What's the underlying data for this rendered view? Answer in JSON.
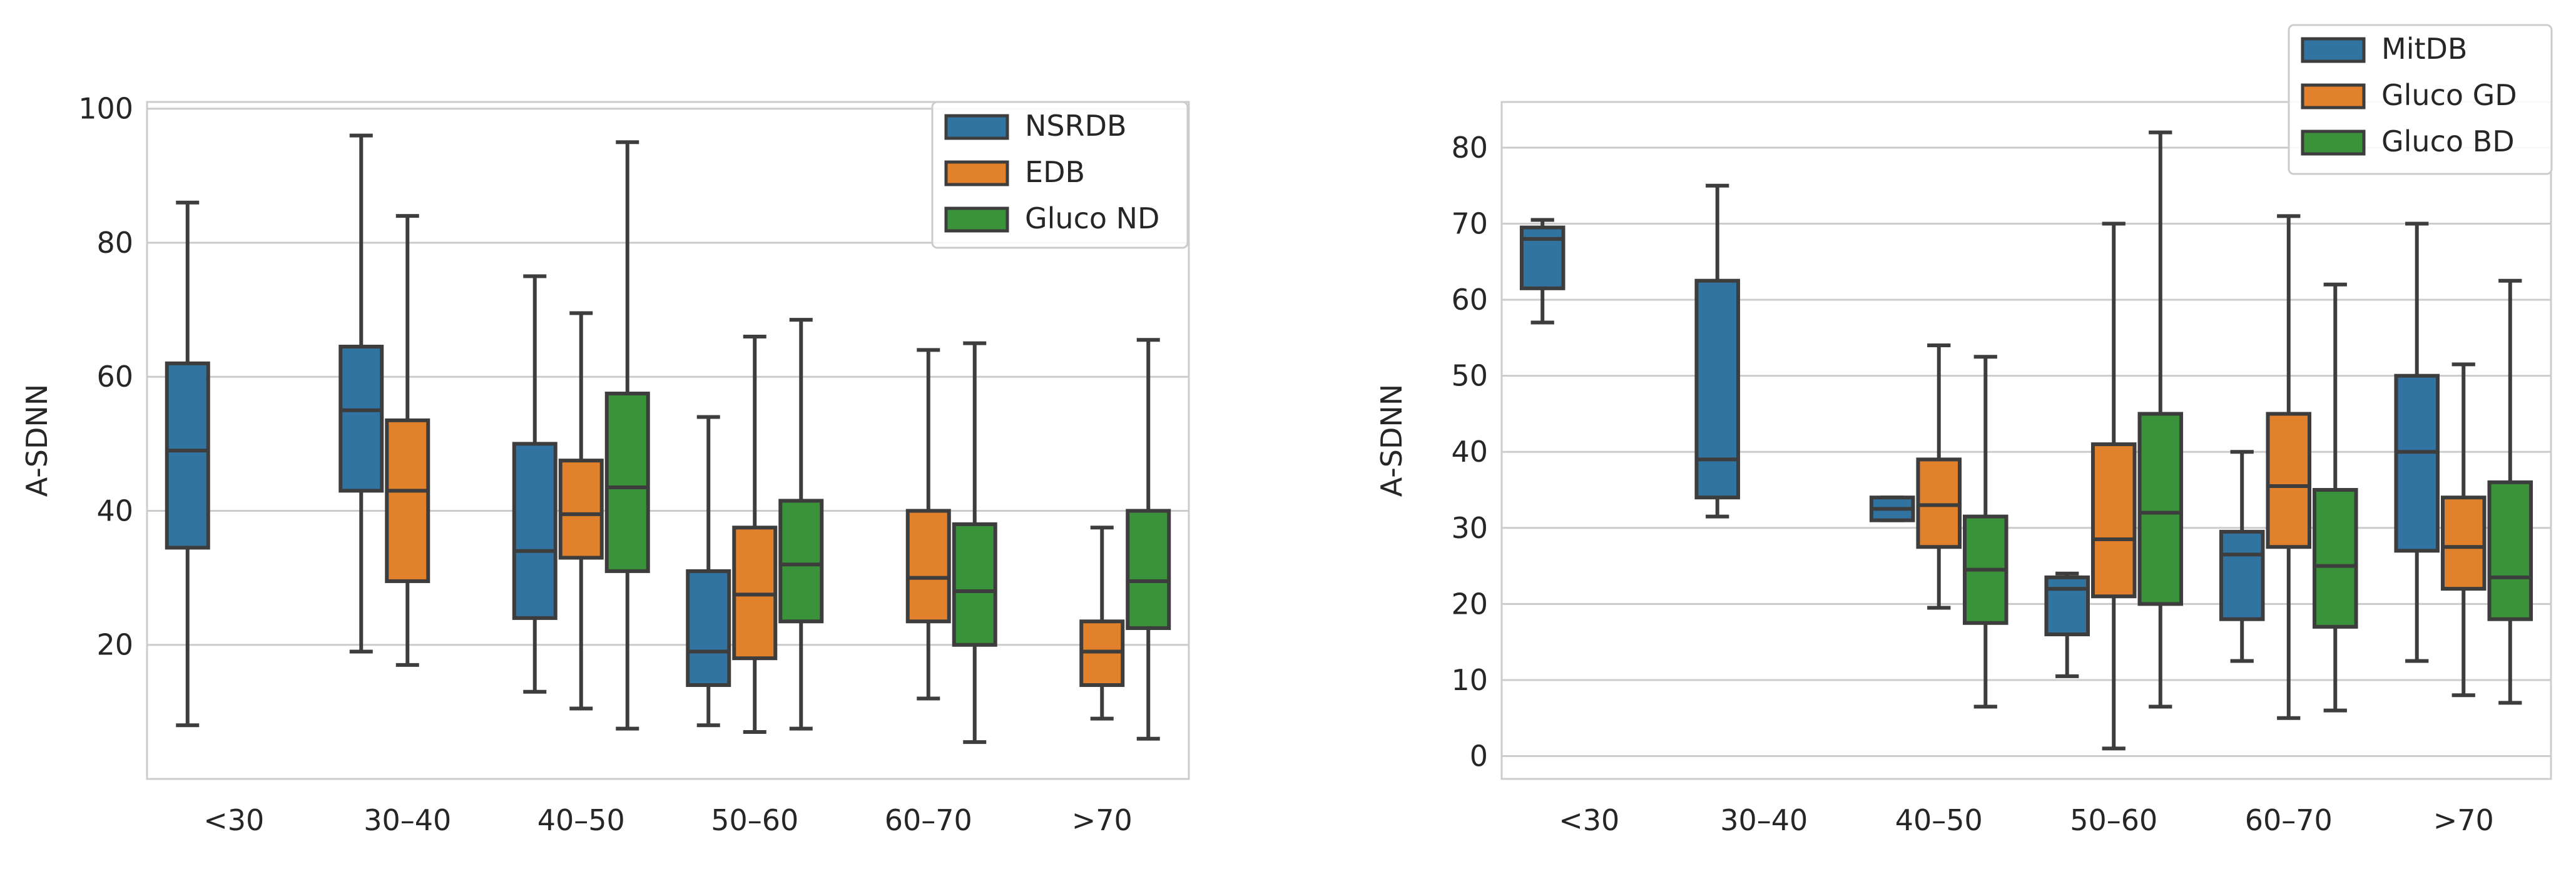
{
  "colors": {
    "blue": "#3274a1",
    "orange": "#e1812c",
    "green": "#3a923a",
    "grid": "#cccccc",
    "frame": "#cccccc",
    "line": "#3d3d3d"
  },
  "chart_data": [
    {
      "type": "box",
      "title": "",
      "xlabel": "",
      "ylabel": "A-SDNN",
      "categories": [
        "<30",
        "30–40",
        "40–50",
        "50–60",
        "60–70",
        ">70"
      ],
      "yticks": [
        20,
        40,
        60,
        80,
        100
      ],
      "ylim": [
        0,
        101
      ],
      "legend": {
        "position": "top-right"
      },
      "series": [
        {
          "name": "NSRDB",
          "color": "#3274a1",
          "boxes": [
            {
              "min": 8,
              "q1": 34.5,
              "median": 49,
              "q3": 62,
              "max": 86
            },
            {
              "min": 19,
              "q1": 43,
              "median": 55,
              "q3": 64.5,
              "max": 96
            },
            {
              "min": 13,
              "q1": 24,
              "median": 34,
              "q3": 50,
              "max": 75
            },
            {
              "min": 8,
              "q1": 14,
              "median": 19,
              "q3": 31,
              "max": 54
            },
            null,
            null
          ]
        },
        {
          "name": "EDB",
          "color": "#e1812c",
          "boxes": [
            null,
            {
              "min": 17,
              "q1": 29.5,
              "median": 43,
              "q3": 53.5,
              "max": 84
            },
            {
              "min": 10.5,
              "q1": 33,
              "median": 39.5,
              "q3": 47.5,
              "max": 69.5
            },
            {
              "min": 7,
              "q1": 18,
              "median": 27.5,
              "q3": 37.5,
              "max": 66
            },
            {
              "min": 12,
              "q1": 23.5,
              "median": 30,
              "q3": 40,
              "max": 64
            },
            {
              "min": 9,
              "q1": 14,
              "median": 19,
              "q3": 23.5,
              "max": 37.5
            }
          ]
        },
        {
          "name": "Gluco ND",
          "color": "#3a923a",
          "boxes": [
            null,
            null,
            {
              "min": 7.5,
              "q1": 31,
              "median": 43.5,
              "q3": 57.5,
              "max": 95
            },
            {
              "min": 7.5,
              "q1": 23.5,
              "median": 32,
              "q3": 41.5,
              "max": 68.5
            },
            {
              "min": 5.5,
              "q1": 20,
              "median": 28,
              "q3": 38,
              "max": 65
            },
            {
              "min": 6,
              "q1": 22.5,
              "median": 29.5,
              "q3": 40,
              "max": 65.5
            }
          ]
        }
      ]
    },
    {
      "type": "box",
      "title": "",
      "xlabel": "",
      "ylabel": "A-SDNN",
      "categories": [
        "<30",
        "30–40",
        "40–50",
        "50–60",
        "60–70",
        ">70"
      ],
      "yticks": [
        0,
        10,
        20,
        30,
        40,
        50,
        60,
        70,
        80
      ],
      "ylim": [
        -3,
        86
      ],
      "legend": {
        "position": "top-right"
      },
      "series": [
        {
          "name": "MitDB",
          "color": "#3274a1",
          "boxes": [
            {
              "min": 57,
              "q1": 61.5,
              "median": 68,
              "q3": 69.5,
              "max": 70.5
            },
            {
              "min": 31.5,
              "q1": 34,
              "median": 39,
              "q3": 62.5,
              "max": 75
            },
            {
              "min": 31,
              "q1": 31,
              "median": 32.5,
              "q3": 34,
              "max": 34
            },
            {
              "min": 10.5,
              "q1": 16,
              "median": 22,
              "q3": 23.5,
              "max": 24
            },
            {
              "min": 12.5,
              "q1": 18,
              "median": 26.5,
              "q3": 29.5,
              "max": 40
            },
            {
              "min": 12.5,
              "q1": 27,
              "median": 40,
              "q3": 50,
              "max": 70
            }
          ]
        },
        {
          "name": "Gluco GD",
          "color": "#e1812c",
          "boxes": [
            null,
            null,
            {
              "min": 19.5,
              "q1": 27.5,
              "median": 33,
              "q3": 39,
              "max": 54
            },
            {
              "min": 1,
              "q1": 21,
              "median": 28.5,
              "q3": 41,
              "max": 70
            },
            {
              "min": 5,
              "q1": 27.5,
              "median": 35.5,
              "q3": 45,
              "max": 71
            },
            {
              "min": 8,
              "q1": 22,
              "median": 27.5,
              "q3": 34,
              "max": 51.5
            }
          ]
        },
        {
          "name": "Gluco BD",
          "color": "#3a923a",
          "boxes": [
            null,
            null,
            {
              "min": 6.5,
              "q1": 17.5,
              "median": 24.5,
              "q3": 31.5,
              "max": 52.5
            },
            {
              "min": 6.5,
              "q1": 20,
              "median": 32,
              "q3": 45,
              "max": 82
            },
            {
              "min": 6,
              "q1": 17,
              "median": 25,
              "q3": 35,
              "max": 62
            },
            {
              "min": 7,
              "q1": 18,
              "median": 23.5,
              "q3": 36,
              "max": 62.5
            }
          ]
        }
      ]
    }
  ]
}
